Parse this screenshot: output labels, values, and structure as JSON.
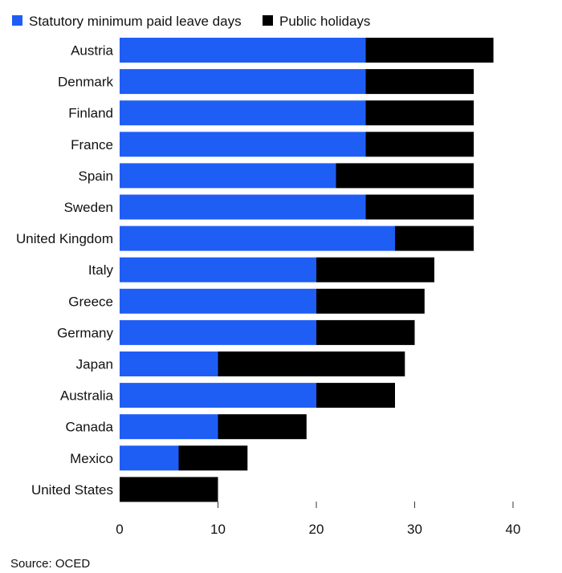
{
  "chart_data": {
    "type": "bar",
    "orientation": "horizontal",
    "stacked": true,
    "categories": [
      "Austria",
      "Denmark",
      "Finland",
      "France",
      "Spain",
      "Sweden",
      "United Kingdom",
      "Italy",
      "Greece",
      "Germany",
      "Japan",
      "Australia",
      "Canada",
      "Mexico",
      "United States"
    ],
    "series": [
      {
        "name": "Statutory minimum paid leave days",
        "color": "#1f5ef5",
        "values": [
          25,
          25,
          25,
          25,
          22,
          25,
          28,
          20,
          20,
          20,
          10,
          20,
          10,
          6,
          0
        ]
      },
      {
        "name": "Public holidays",
        "color": "#000000",
        "values": [
          13,
          11,
          11,
          11,
          14,
          11,
          8,
          12,
          11,
          10,
          19,
          8,
          9,
          7,
          10
        ]
      }
    ],
    "x_ticks": [
      "0",
      "10",
      "20",
      "30",
      "40"
    ],
    "xlim": [
      0,
      40
    ],
    "legend_position": "top-left",
    "grid": false,
    "source": "Source: OCED"
  }
}
